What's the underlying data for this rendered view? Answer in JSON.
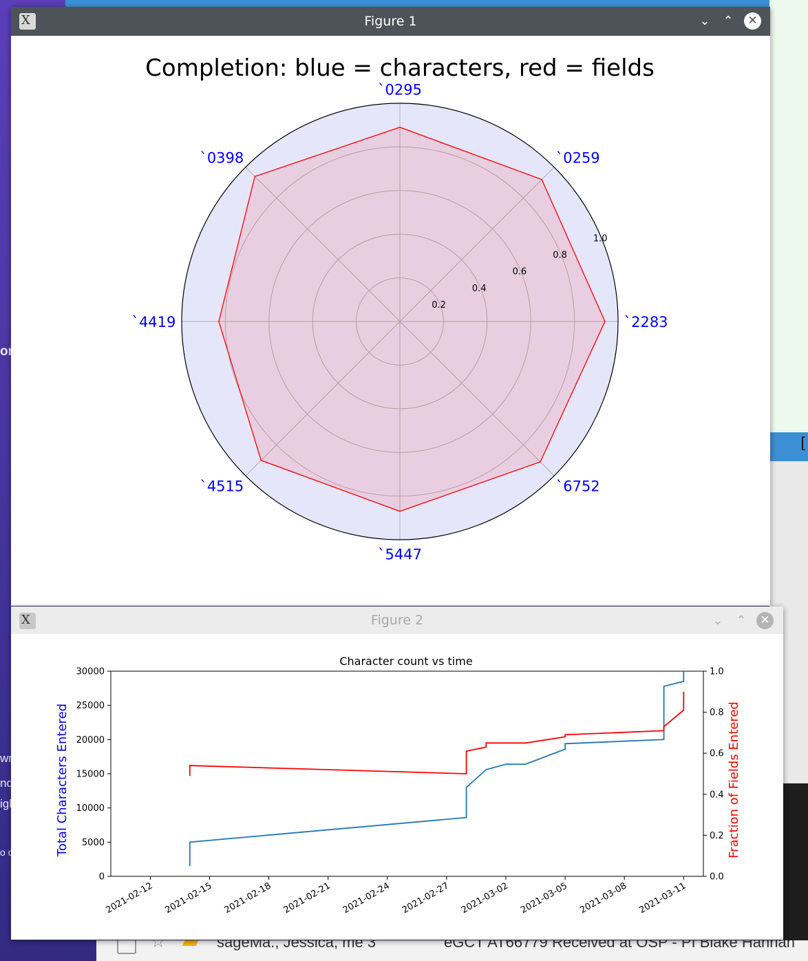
{
  "figure1": {
    "window_title": "Figure 1",
    "chart_data": {
      "type": "radar",
      "title": "Completion: blue = characters, red = fields",
      "categories": [
        "`2283",
        "`0259",
        "`0295",
        "`0398",
        "`4419",
        "`4515",
        "`5447",
        "`6752"
      ],
      "series": [
        {
          "values": [
            0.94,
            0.92,
            0.89,
            0.94,
            0.83,
            0.9,
            0.87,
            0.91
          ]
        }
      ],
      "radial_ticks": [
        "0.2",
        "0.4",
        "0.6",
        "0.8",
        "1.0"
      ],
      "rlim": [
        0,
        1.0
      ],
      "grid": true,
      "colors": {
        "fields": "#ff0000",
        "characters": "#0000ff",
        "label": "#0000ff"
      }
    }
  },
  "figure2": {
    "window_title": "Figure 2",
    "chart_data": {
      "type": "line",
      "title": "Character count vs time",
      "ylabel_left": "Total Characters Entered",
      "ylabel_right": "Fraction of Fields Entered",
      "x_ticks": [
        "2021-02-12",
        "2021-02-15",
        "2021-02-18",
        "2021-02-21",
        "2021-02-24",
        "2021-02-27",
        "2021-03-02",
        "2021-03-05",
        "2021-03-08",
        "2021-03-11"
      ],
      "y_left_ticks": [
        "0",
        "5000",
        "10000",
        "15000",
        "20000",
        "25000",
        "30000"
      ],
      "y_right_ticks": [
        "0.0",
        "0.2",
        "0.4",
        "0.6",
        "0.8",
        "1.0"
      ],
      "xlim": [
        "2021-02-10",
        "2021-03-12"
      ],
      "ylim_left": [
        0,
        30000
      ],
      "ylim_right": [
        0,
        1.0
      ],
      "series": [
        {
          "axis": "left",
          "color": "#1f77b4",
          "points": [
            [
              "2021-02-14",
              1500
            ],
            [
              "2021-02-14",
              2500
            ],
            [
              "2021-02-14",
              5000
            ],
            [
              "2021-02-28",
              8600
            ],
            [
              "2021-02-28",
              12800
            ],
            [
              "2021-02-28",
              13000
            ],
            [
              "2021-03-01",
              15600
            ],
            [
              "2021-03-02",
              16400
            ],
            [
              "2021-03-03",
              16400
            ],
            [
              "2021-03-05",
              18600
            ],
            [
              "2021-03-05",
              19400
            ],
            [
              "2021-03-10",
              20000
            ],
            [
              "2021-03-10",
              21800
            ],
            [
              "2021-03-10",
              27800
            ],
            [
              "2021-03-11",
              28500
            ],
            [
              "2021-03-11",
              30000
            ]
          ]
        },
        {
          "axis": "right",
          "color": "#ff0000",
          "points": [
            [
              "2021-02-14",
              0.49
            ],
            [
              "2021-02-14",
              0.52
            ],
            [
              "2021-02-14",
              0.54
            ],
            [
              "2021-02-28",
              0.5
            ],
            [
              "2021-02-28",
              0.56
            ],
            [
              "2021-02-28",
              0.61
            ],
            [
              "2021-03-01",
              0.63
            ],
            [
              "2021-03-01",
              0.65
            ],
            [
              "2021-03-03",
              0.65
            ],
            [
              "2021-03-05",
              0.68
            ],
            [
              "2021-03-05",
              0.69
            ],
            [
              "2021-03-10",
              0.71
            ],
            [
              "2021-03-10",
              0.73
            ],
            [
              "2021-03-11",
              0.81
            ],
            [
              "2021-03-11",
              0.9
            ]
          ]
        }
      ]
    }
  },
  "background": {
    "right_bar_text": "[a",
    "left_fragments": [
      "or",
      "wr",
      "nd",
      "igl",
      "o c"
    ],
    "mail_row_sender": "sageMa., Jessica, me 3",
    "mail_row_subject": "eGCT AT66779 Received at OSP - PI Blake Hannah"
  }
}
